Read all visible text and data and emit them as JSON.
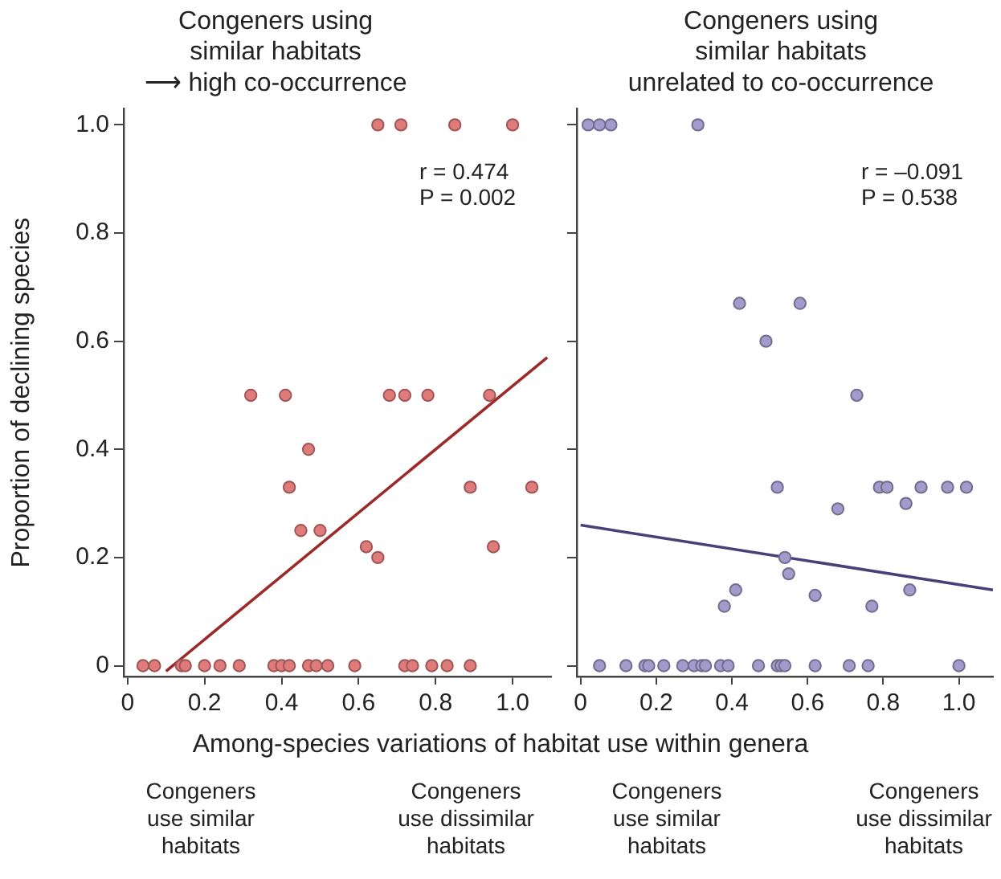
{
  "chart_data": [
    {
      "type": "scatter",
      "title": "Congeners using\nsimilar habitats\n⟶ high co-occurrence",
      "xlabel": "Among-species variations of habitat use within genera",
      "ylabel": "Proportion of declining species",
      "annotations": [
        "r = 0.474\nP = 0.002",
        "Congeners\nuse similar\nhabitats",
        "Congeners\nuse dissimilar\nhabitats"
      ],
      "xlim": [
        -0.01,
        1.1
      ],
      "ylim": [
        -0.02,
        1.03
      ],
      "xticks": [
        0,
        0.2,
        0.4,
        0.6,
        0.8,
        {
          "value": 1,
          "label": "1.0"
        }
      ],
      "yticks": [
        0,
        0.2,
        0.4,
        0.6,
        0.8,
        {
          "value": 1,
          "label": "1.0"
        }
      ],
      "grid": false,
      "legend": false,
      "series": [
        {
          "marker": "circle",
          "color": "#e07b7b",
          "x": [
            0.65,
            0.71,
            0.85,
            1.0,
            0.32,
            0.41,
            0.68,
            0.72,
            0.78,
            0.94,
            0.47,
            0.42,
            0.89,
            1.05,
            0.45,
            0.5,
            0.62,
            0.65,
            0.95,
            0.04,
            0.07,
            0.14,
            0.15,
            0.2,
            0.24,
            0.29,
            0.38,
            0.4,
            0.42,
            0.47,
            0.49,
            0.52,
            0.59,
            0.72,
            0.74,
            0.79,
            0.83,
            0.89
          ],
          "values": [
            1,
            1,
            1,
            1,
            0.5,
            0.5,
            0.5,
            0.5,
            0.5,
            0.5,
            0.4,
            0.33,
            0.33,
            0.33,
            0.25,
            0.25,
            0.22,
            0.2,
            0.22,
            0,
            0,
            0,
            0,
            0,
            0,
            0,
            0,
            0,
            0,
            0,
            0,
            0,
            0,
            0,
            0,
            0,
            0,
            0
          ]
        },
        {
          "type": "line",
          "marker": "none",
          "color": "#9b2a2a",
          "x": [
            0.1,
            1.09
          ],
          "values": [
            -0.01,
            0.57
          ]
        }
      ]
    },
    {
      "type": "scatter",
      "title": "Congeners using\nsimilar habitats\nunrelated to co-occurrence",
      "annotations": [
        "r = –0.091\nP = 0.538",
        "Congeners\nuse similar\nhabitats",
        "Congeners\nuse dissimilar\nhabitats"
      ],
      "xlim": [
        -0.01,
        1.09
      ],
      "ylim": [
        -0.02,
        1.03
      ],
      "xticks": [
        0,
        0.2,
        0.4,
        0.6,
        0.8,
        {
          "value": 1,
          "label": "1.0"
        }
      ],
      "yticks": [
        {
          "value": 0,
          "label": null
        },
        {
          "value": 0.2,
          "label": null
        },
        {
          "value": 0.4,
          "label": null
        },
        {
          "value": 0.6,
          "label": null
        },
        {
          "value": 0.8,
          "label": null
        },
        {
          "value": 1,
          "label": null
        }
      ],
      "tick_labels": "x",
      "grid": false,
      "legend": false,
      "series": [
        {
          "marker": "circle",
          "color": "#a39bcb",
          "x": [
            0.02,
            0.05,
            0.08,
            0.31,
            0.42,
            0.58,
            0.49,
            0.73,
            0.52,
            0.79,
            0.81,
            0.9,
            0.97,
            1.02,
            0.86,
            0.68,
            0.54,
            0.55,
            0.41,
            0.87,
            0.62,
            0.38,
            0.77,
            0.05,
            0.12,
            0.17,
            0.18,
            0.22,
            0.27,
            0.3,
            0.32,
            0.33,
            0.37,
            0.39,
            0.47,
            0.52,
            0.53,
            0.54,
            0.62,
            0.71,
            0.76,
            1.0
          ],
          "values": [
            1,
            1,
            1,
            1,
            0.67,
            0.67,
            0.6,
            0.5,
            0.33,
            0.33,
            0.33,
            0.33,
            0.33,
            0.33,
            0.3,
            0.29,
            0.2,
            0.17,
            0.14,
            0.14,
            0.13,
            0.11,
            0.11,
            0,
            0,
            0,
            0,
            0,
            0,
            0,
            0,
            0,
            0,
            0,
            0,
            0,
            0,
            0,
            0,
            0,
            0,
            0
          ]
        },
        {
          "type": "line",
          "marker": "none",
          "color": "#4a3f78",
          "x": [
            0,
            1.09
          ],
          "values": [
            0.26,
            0.14
          ]
        }
      ]
    }
  ]
}
